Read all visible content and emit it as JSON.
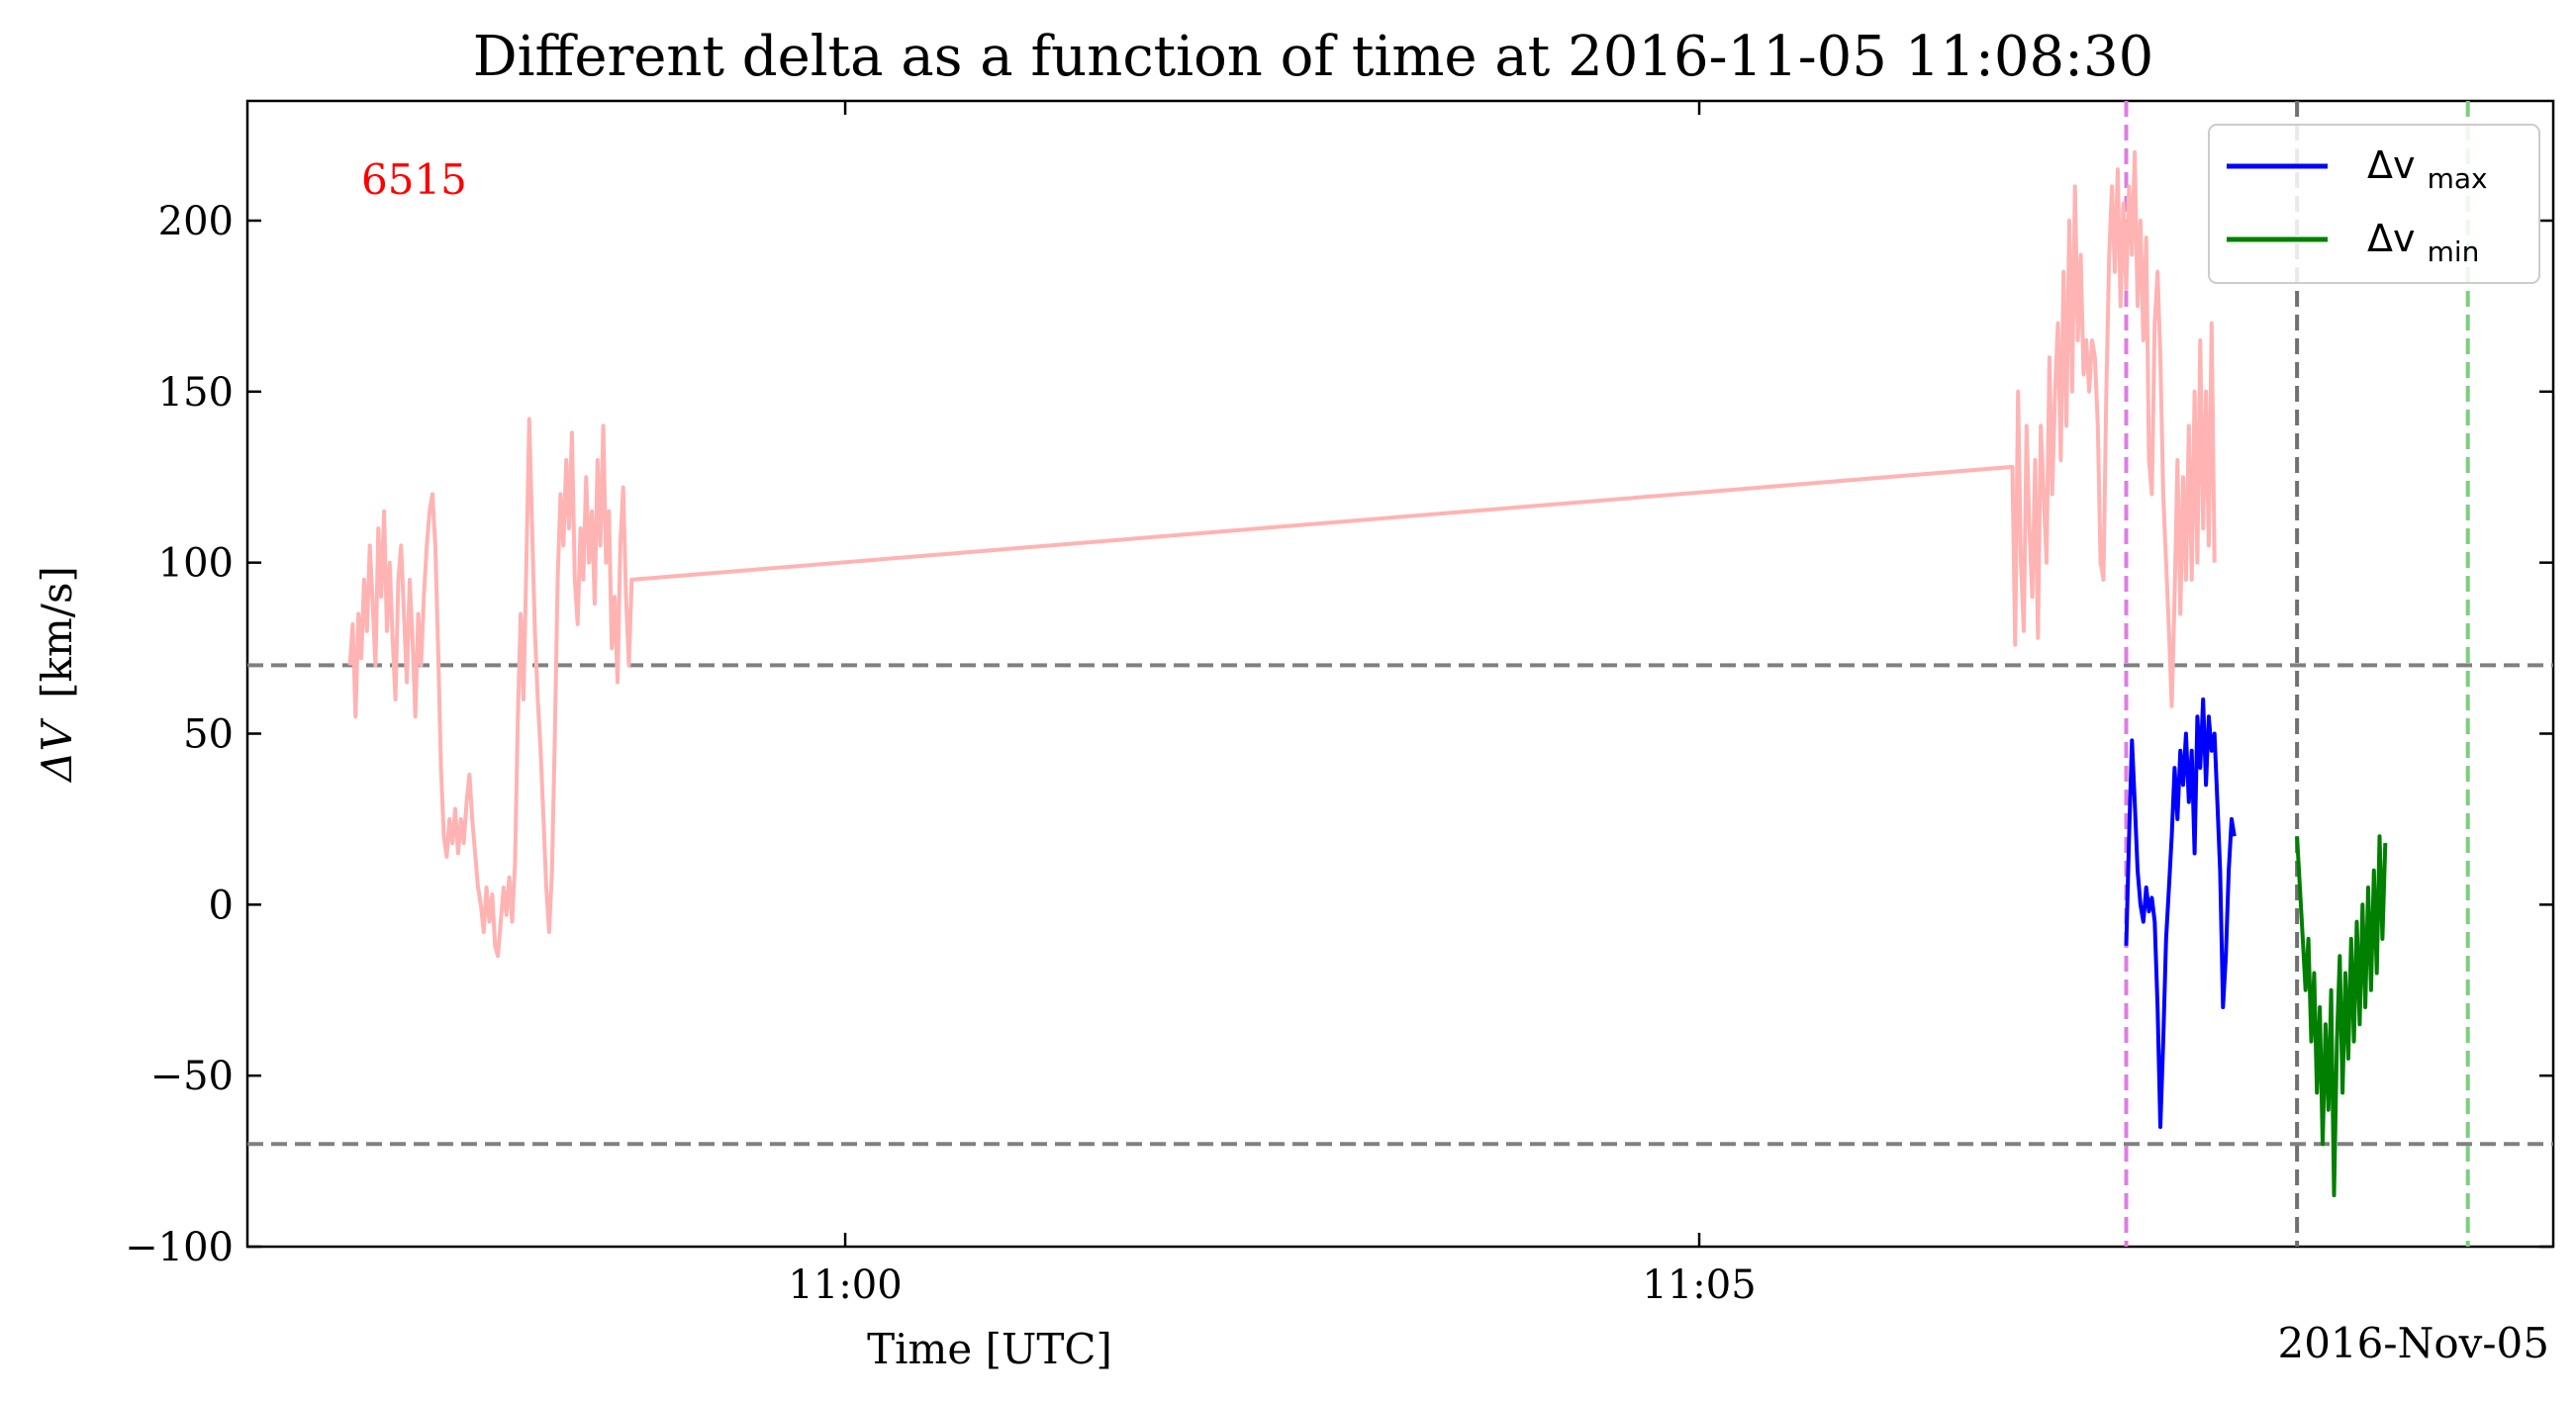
{
  "chart_data": {
    "type": "line",
    "title": "Different delta as a function of time at 2016-11-05 11:08:30",
    "xlabel": "Time [UTC]",
    "ylabel_symbol": "ΔV",
    "ylabel_unit": "[km/s]",
    "x_offset_label": "2016-Nov-05",
    "annotation": "6515",
    "annotation_color": "#ff0000",
    "x_range": [
      "10:56:30",
      "11:10:00"
    ],
    "ylim": [
      -100,
      235
    ],
    "x_ticks": [
      {
        "time": "11:00:00",
        "label": "11:00"
      },
      {
        "time": "11:05:00",
        "label": "11:05"
      }
    ],
    "y_ticks": [
      {
        "value": 200,
        "label": "200"
      },
      {
        "value": 150,
        "label": "150"
      },
      {
        "value": 100,
        "label": "100"
      },
      {
        "value": 50,
        "label": "50"
      },
      {
        "value": 0,
        "label": "0"
      },
      {
        "value": -50,
        "label": "−50"
      },
      {
        "value": -100,
        "label": "−100"
      }
    ],
    "grid": false,
    "legend_position": "top-right",
    "horizontal_lines": [
      {
        "y": 70,
        "color": "#808080",
        "style": "dashed"
      },
      {
        "y": -70,
        "color": "#808080",
        "style": "dashed"
      }
    ],
    "vertical_lines": [
      {
        "time": "11:07:30",
        "color": "#dd7ee0",
        "style": "dashed"
      },
      {
        "time": "11:08:30",
        "color": "#707070",
        "style": "dashed"
      },
      {
        "time": "11:09:30",
        "color": "#7ccf7c",
        "style": "dashed"
      }
    ],
    "series": [
      {
        "color": "#ffb3b3",
        "points": [
          [
            "10:57:06",
            70
          ],
          [
            "10:57:07",
            82
          ],
          [
            "10:57:08",
            55
          ],
          [
            "10:57:09",
            85
          ],
          [
            "10:57:10",
            72
          ],
          [
            "10:57:11",
            95
          ],
          [
            "10:57:12",
            80
          ],
          [
            "10:57:13",
            105
          ],
          [
            "10:57:14",
            88
          ],
          [
            "10:57:15",
            70
          ],
          [
            "10:57:16",
            110
          ],
          [
            "10:57:17",
            90
          ],
          [
            "10:57:18",
            115
          ],
          [
            "10:57:19",
            80
          ],
          [
            "10:57:20",
            100
          ],
          [
            "10:57:21",
            78
          ],
          [
            "10:57:22",
            60
          ],
          [
            "10:57:23",
            95
          ],
          [
            "10:57:24",
            105
          ],
          [
            "10:57:25",
            85
          ],
          [
            "10:57:26",
            65
          ],
          [
            "10:57:27",
            95
          ],
          [
            "10:57:28",
            78
          ],
          [
            "10:57:29",
            55
          ],
          [
            "10:57:30",
            85
          ],
          [
            "10:57:31",
            70
          ],
          [
            "10:57:32",
            90
          ],
          [
            "10:57:33",
            105
          ],
          [
            "10:57:34",
            115
          ],
          [
            "10:57:35",
            120
          ],
          [
            "10:57:36",
            105
          ],
          [
            "10:57:37",
            75
          ],
          [
            "10:57:38",
            40
          ],
          [
            "10:57:39",
            20
          ],
          [
            "10:57:40",
            14
          ],
          [
            "10:57:41",
            25
          ],
          [
            "10:57:42",
            18
          ],
          [
            "10:57:43",
            28
          ],
          [
            "10:57:44",
            15
          ],
          [
            "10:57:45",
            25
          ],
          [
            "10:57:46",
            18
          ],
          [
            "10:57:47",
            30
          ],
          [
            "10:57:48",
            38
          ],
          [
            "10:57:49",
            25
          ],
          [
            "10:57:50",
            15
          ],
          [
            "10:57:51",
            5
          ],
          [
            "10:57:52",
            0
          ],
          [
            "10:57:53",
            -8
          ],
          [
            "10:57:54",
            5
          ],
          [
            "10:57:55",
            -5
          ],
          [
            "10:57:56",
            3
          ],
          [
            "10:57:57",
            -12
          ],
          [
            "10:57:58",
            -15
          ],
          [
            "10:57:59",
            -5
          ],
          [
            "10:58:00",
            5
          ],
          [
            "10:58:01",
            -3
          ],
          [
            "10:58:02",
            8
          ],
          [
            "10:58:03",
            -5
          ],
          [
            "10:58:04",
            12
          ],
          [
            "10:58:05",
            55
          ],
          [
            "10:58:06",
            85
          ],
          [
            "10:58:07",
            60
          ],
          [
            "10:58:08",
            100
          ],
          [
            "10:58:09",
            142
          ],
          [
            "10:58:10",
            110
          ],
          [
            "10:58:11",
            80
          ],
          [
            "10:58:12",
            60
          ],
          [
            "10:58:13",
            45
          ],
          [
            "10:58:14",
            25
          ],
          [
            "10:58:15",
            5
          ],
          [
            "10:58:16",
            -8
          ],
          [
            "10:58:17",
            10
          ],
          [
            "10:58:18",
            50
          ],
          [
            "10:58:19",
            95
          ],
          [
            "10:58:20",
            120
          ],
          [
            "10:58:21",
            105
          ],
          [
            "10:58:22",
            130
          ],
          [
            "10:58:23",
            110
          ],
          [
            "10:58:24",
            138
          ],
          [
            "10:58:25",
            95
          ],
          [
            "10:58:26",
            82
          ],
          [
            "10:58:27",
            110
          ],
          [
            "10:58:28",
            95
          ],
          [
            "10:58:29",
            125
          ],
          [
            "10:58:30",
            100
          ],
          [
            "10:58:31",
            115
          ],
          [
            "10:58:32",
            88
          ],
          [
            "10:58:33",
            130
          ],
          [
            "10:58:34",
            105
          ],
          [
            "10:58:35",
            140
          ],
          [
            "10:58:36",
            100
          ],
          [
            "10:58:37",
            115
          ],
          [
            "10:58:38",
            75
          ],
          [
            "10:58:39",
            90
          ],
          [
            "10:58:40",
            65
          ],
          [
            "10:58:41",
            105
          ],
          [
            "10:58:42",
            122
          ],
          [
            "10:58:43",
            90
          ],
          [
            "10:58:44",
            70
          ],
          [
            "10:58:45",
            95
          ],
          [
            "11:06:50",
            128
          ],
          [
            "11:06:51",
            76
          ],
          [
            "11:06:52",
            150
          ],
          [
            "11:06:53",
            100
          ],
          [
            "11:06:54",
            80
          ],
          [
            "11:06:55",
            140
          ],
          [
            "11:06:56",
            110
          ],
          [
            "11:06:57",
            90
          ],
          [
            "11:06:58",
            130
          ],
          [
            "11:06:59",
            78
          ],
          [
            "11:07:00",
            140
          ],
          [
            "11:07:01",
            120
          ],
          [
            "11:07:02",
            100
          ],
          [
            "11:07:03",
            160
          ],
          [
            "11:07:04",
            120
          ],
          [
            "11:07:05",
            150
          ],
          [
            "11:07:06",
            170
          ],
          [
            "11:07:07",
            130
          ],
          [
            "11:07:08",
            185
          ],
          [
            "11:07:09",
            140
          ],
          [
            "11:07:10",
            200
          ],
          [
            "11:07:11",
            150
          ],
          [
            "11:07:12",
            210
          ],
          [
            "11:07:13",
            165
          ],
          [
            "11:07:14",
            190
          ],
          [
            "11:07:15",
            155
          ],
          [
            "11:07:16",
            165
          ],
          [
            "11:07:17",
            150
          ],
          [
            "11:07:18",
            165
          ],
          [
            "11:07:19",
            160
          ],
          [
            "11:07:20",
            140
          ],
          [
            "11:07:21",
            100
          ],
          [
            "11:07:22",
            95
          ],
          [
            "11:07:23",
            150
          ],
          [
            "11:07:24",
            190
          ],
          [
            "11:07:25",
            210
          ],
          [
            "11:07:26",
            185
          ],
          [
            "11:07:27",
            215
          ],
          [
            "11:07:28",
            175
          ],
          [
            "11:07:29",
            205
          ],
          [
            "11:07:30",
            180
          ],
          [
            "11:07:31",
            210
          ],
          [
            "11:07:32",
            190
          ],
          [
            "11:07:33",
            220
          ],
          [
            "11:07:34",
            175
          ],
          [
            "11:07:35",
            200
          ],
          [
            "11:07:36",
            165
          ],
          [
            "11:07:37",
            195
          ],
          [
            "11:07:38",
            130
          ],
          [
            "11:07:39",
            120
          ],
          [
            "11:07:40",
            170
          ],
          [
            "11:07:41",
            185
          ],
          [
            "11:07:42",
            160
          ],
          [
            "11:07:43",
            120
          ],
          [
            "11:07:44",
            100
          ],
          [
            "11:07:45",
            80
          ],
          [
            "11:07:46",
            58
          ],
          [
            "11:07:47",
            90
          ],
          [
            "11:07:48",
            130
          ],
          [
            "11:07:49",
            85
          ],
          [
            "11:07:50",
            125
          ],
          [
            "11:07:51",
            95
          ],
          [
            "11:07:52",
            140
          ],
          [
            "11:07:53",
            95
          ],
          [
            "11:07:54",
            150
          ],
          [
            "11:07:55",
            100
          ],
          [
            "11:07:56",
            165
          ],
          [
            "11:07:57",
            110
          ],
          [
            "11:07:58",
            150
          ],
          [
            "11:07:59",
            105
          ],
          [
            "11:08:00",
            170
          ],
          [
            "11:08:01",
            100
          ]
        ]
      },
      {
        "name": "Δv<sub>max</sub>",
        "legend_symbol": "Δv",
        "legend_sub": "max",
        "color": "#0000ff",
        "points": [
          [
            "11:07:30",
            -12
          ],
          [
            "11:07:31",
            20
          ],
          [
            "11:07:32",
            48
          ],
          [
            "11:07:33",
            30
          ],
          [
            "11:07:34",
            10
          ],
          [
            "11:07:35",
            0
          ],
          [
            "11:07:36",
            -5
          ],
          [
            "11:07:37",
            5
          ],
          [
            "11:07:38",
            -2
          ],
          [
            "11:07:39",
            2
          ],
          [
            "11:07:40",
            -5
          ],
          [
            "11:07:41",
            -30
          ],
          [
            "11:07:42",
            -65
          ],
          [
            "11:07:43",
            -40
          ],
          [
            "11:07:44",
            -10
          ],
          [
            "11:07:45",
            5
          ],
          [
            "11:07:46",
            20
          ],
          [
            "11:07:47",
            40
          ],
          [
            "11:07:48",
            25
          ],
          [
            "11:07:49",
            45
          ],
          [
            "11:07:50",
            35
          ],
          [
            "11:07:51",
            50
          ],
          [
            "11:07:52",
            30
          ],
          [
            "11:07:53",
            45
          ],
          [
            "11:07:54",
            15
          ],
          [
            "11:07:55",
            55
          ],
          [
            "11:07:56",
            40
          ],
          [
            "11:07:57",
            60
          ],
          [
            "11:07:58",
            35
          ],
          [
            "11:07:59",
            55
          ],
          [
            "11:08:00",
            45
          ],
          [
            "11:08:01",
            50
          ],
          [
            "11:08:02",
            30
          ],
          [
            "11:08:03",
            10
          ],
          [
            "11:08:04",
            -30
          ],
          [
            "11:08:05",
            -15
          ],
          [
            "11:08:06",
            10
          ],
          [
            "11:08:07",
            25
          ],
          [
            "11:08:08",
            20
          ]
        ]
      },
      {
        "name": "Δv<sub>min</sub>",
        "legend_symbol": "Δv",
        "legend_sub": "min",
        "color": "#007f00",
        "points": [
          [
            "11:08:30",
            20
          ],
          [
            "11:08:31",
            5
          ],
          [
            "11:08:32",
            -10
          ],
          [
            "11:08:33",
            -25
          ],
          [
            "11:08:34",
            -10
          ],
          [
            "11:08:35",
            -40
          ],
          [
            "11:08:36",
            -20
          ],
          [
            "11:08:37",
            -55
          ],
          [
            "11:08:38",
            -30
          ],
          [
            "11:08:39",
            -70
          ],
          [
            "11:08:40",
            -35
          ],
          [
            "11:08:41",
            -60
          ],
          [
            "11:08:42",
            -25
          ],
          [
            "11:08:43",
            -85
          ],
          [
            "11:08:44",
            -40
          ],
          [
            "11:08:45",
            -15
          ],
          [
            "11:08:46",
            -55
          ],
          [
            "11:08:47",
            -20
          ],
          [
            "11:08:48",
            -45
          ],
          [
            "11:08:49",
            -10
          ],
          [
            "11:08:50",
            -40
          ],
          [
            "11:08:51",
            -5
          ],
          [
            "11:08:52",
            -35
          ],
          [
            "11:08:53",
            0
          ],
          [
            "11:08:54",
            -30
          ],
          [
            "11:08:55",
            5
          ],
          [
            "11:08:56",
            -25
          ],
          [
            "11:08:57",
            10
          ],
          [
            "11:08:58",
            -20
          ],
          [
            "11:08:59",
            20
          ],
          [
            "11:09:00",
            -10
          ],
          [
            "11:09:01",
            18
          ]
        ]
      }
    ]
  }
}
